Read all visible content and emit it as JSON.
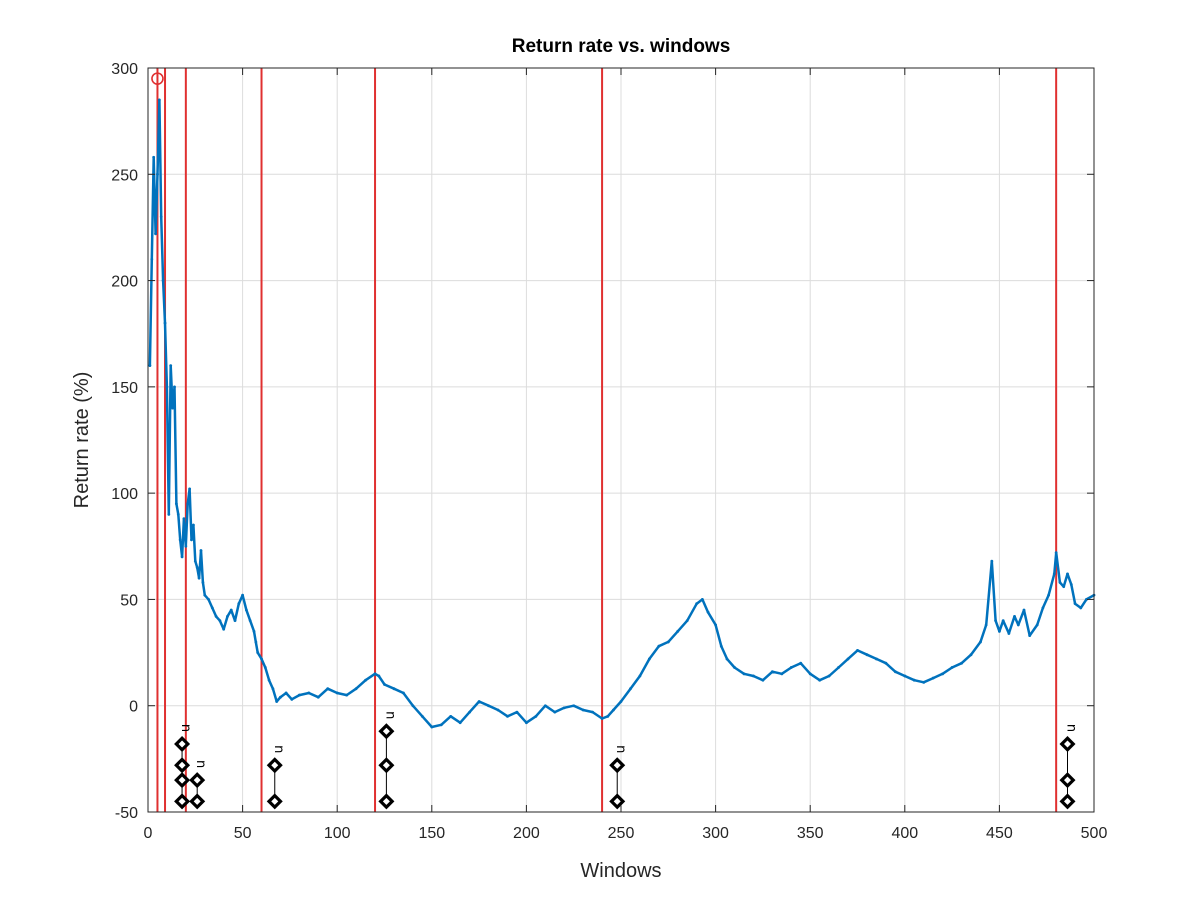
{
  "chart_data": {
    "type": "line",
    "title": "Return rate vs. windows",
    "xlabel": "Windows",
    "ylabel": "Return rate (%)",
    "xlim": [
      0,
      500
    ],
    "ylim": [
      -50,
      300
    ],
    "xticks": [
      0,
      50,
      100,
      150,
      200,
      250,
      300,
      350,
      400,
      450,
      500
    ],
    "yticks": [
      -50,
      0,
      50,
      100,
      150,
      200,
      250,
      300
    ],
    "grid": true,
    "series": [
      {
        "color": "#0072BD",
        "points": [
          [
            1,
            160
          ],
          [
            2,
            210
          ],
          [
            3,
            258
          ],
          [
            4,
            222
          ],
          [
            5,
            250
          ],
          [
            6,
            285
          ],
          [
            7,
            230
          ],
          [
            8,
            200
          ],
          [
            9,
            180
          ],
          [
            10,
            150
          ],
          [
            11,
            90
          ],
          [
            12,
            160
          ],
          [
            13,
            140
          ],
          [
            14,
            150
          ],
          [
            15,
            95
          ],
          [
            16,
            90
          ],
          [
            17,
            78
          ],
          [
            18,
            70
          ],
          [
            19,
            88
          ],
          [
            20,
            75
          ],
          [
            21,
            95
          ],
          [
            22,
            102
          ],
          [
            23,
            78
          ],
          [
            24,
            85
          ],
          [
            25,
            68
          ],
          [
            26,
            65
          ],
          [
            27,
            60
          ],
          [
            28,
            73
          ],
          [
            29,
            58
          ],
          [
            30,
            52
          ],
          [
            32,
            50
          ],
          [
            34,
            46
          ],
          [
            36,
            42
          ],
          [
            38,
            40
          ],
          [
            40,
            36
          ],
          [
            42,
            42
          ],
          [
            44,
            45
          ],
          [
            46,
            40
          ],
          [
            48,
            48
          ],
          [
            50,
            52
          ],
          [
            52,
            45
          ],
          [
            54,
            40
          ],
          [
            56,
            35
          ],
          [
            57,
            30
          ],
          [
            58,
            25
          ],
          [
            60,
            22
          ],
          [
            62,
            18
          ],
          [
            64,
            12
          ],
          [
            66,
            8
          ],
          [
            68,
            2
          ],
          [
            70,
            4
          ],
          [
            73,
            6
          ],
          [
            76,
            3
          ],
          [
            80,
            5
          ],
          [
            85,
            6
          ],
          [
            90,
            4
          ],
          [
            95,
            8
          ],
          [
            100,
            6
          ],
          [
            105,
            5
          ],
          [
            110,
            8
          ],
          [
            115,
            12
          ],
          [
            120,
            15
          ],
          [
            122,
            14
          ],
          [
            125,
            10
          ],
          [
            130,
            8
          ],
          [
            135,
            6
          ],
          [
            140,
            0
          ],
          [
            145,
            -5
          ],
          [
            150,
            -10
          ],
          [
            155,
            -9
          ],
          [
            160,
            -5
          ],
          [
            165,
            -8
          ],
          [
            170,
            -3
          ],
          [
            175,
            2
          ],
          [
            180,
            0
          ],
          [
            185,
            -2
          ],
          [
            190,
            -5
          ],
          [
            195,
            -3
          ],
          [
            200,
            -8
          ],
          [
            205,
            -5
          ],
          [
            210,
            0
          ],
          [
            215,
            -3
          ],
          [
            220,
            -1
          ],
          [
            225,
            0
          ],
          [
            230,
            -2
          ],
          [
            235,
            -3
          ],
          [
            240,
            -6
          ],
          [
            243,
            -5
          ],
          [
            246,
            -2
          ],
          [
            250,
            2
          ],
          [
            255,
            8
          ],
          [
            260,
            14
          ],
          [
            265,
            22
          ],
          [
            270,
            28
          ],
          [
            275,
            30
          ],
          [
            280,
            35
          ],
          [
            285,
            40
          ],
          [
            290,
            48
          ],
          [
            293,
            50
          ],
          [
            296,
            44
          ],
          [
            300,
            38
          ],
          [
            303,
            28
          ],
          [
            306,
            22
          ],
          [
            310,
            18
          ],
          [
            315,
            15
          ],
          [
            320,
            14
          ],
          [
            325,
            12
          ],
          [
            330,
            16
          ],
          [
            335,
            15
          ],
          [
            340,
            18
          ],
          [
            345,
            20
          ],
          [
            350,
            15
          ],
          [
            355,
            12
          ],
          [
            360,
            14
          ],
          [
            365,
            18
          ],
          [
            370,
            22
          ],
          [
            375,
            26
          ],
          [
            380,
            24
          ],
          [
            385,
            22
          ],
          [
            390,
            20
          ],
          [
            395,
            16
          ],
          [
            400,
            14
          ],
          [
            405,
            12
          ],
          [
            410,
            11
          ],
          [
            415,
            13
          ],
          [
            420,
            15
          ],
          [
            425,
            18
          ],
          [
            430,
            20
          ],
          [
            435,
            24
          ],
          [
            440,
            30
          ],
          [
            443,
            38
          ],
          [
            446,
            68
          ],
          [
            448,
            40
          ],
          [
            450,
            35
          ],
          [
            452,
            40
          ],
          [
            455,
            34
          ],
          [
            458,
            42
          ],
          [
            460,
            38
          ],
          [
            463,
            45
          ],
          [
            466,
            33
          ],
          [
            470,
            38
          ],
          [
            473,
            46
          ],
          [
            476,
            52
          ],
          [
            479,
            62
          ],
          [
            480,
            72
          ],
          [
            482,
            58
          ],
          [
            484,
            56
          ],
          [
            486,
            62
          ],
          [
            488,
            57
          ],
          [
            490,
            48
          ],
          [
            493,
            46
          ],
          [
            496,
            50
          ],
          [
            500,
            52
          ]
        ]
      }
    ],
    "peak_marker": {
      "x": 5,
      "y": 295,
      "color": "#E03030"
    },
    "vertical_lines": {
      "color": "#E03030",
      "x": [
        5,
        9,
        20,
        60,
        120,
        240,
        480
      ]
    },
    "annotations": [
      {
        "x": 18,
        "label": "n",
        "levels": [
          -18,
          -28,
          -35,
          -45
        ]
      },
      {
        "x": 26,
        "label": "n",
        "levels": [
          -35,
          -45
        ]
      },
      {
        "x": 67,
        "label": "n",
        "levels": [
          -28,
          -45
        ]
      },
      {
        "x": 126,
        "label": "n",
        "levels": [
          -12,
          -28,
          -45
        ]
      },
      {
        "x": 248,
        "label": "n",
        "levels": [
          -28,
          -45
        ]
      },
      {
        "x": 486,
        "label": "n",
        "levels": [
          -18,
          -35,
          -45
        ]
      }
    ]
  }
}
